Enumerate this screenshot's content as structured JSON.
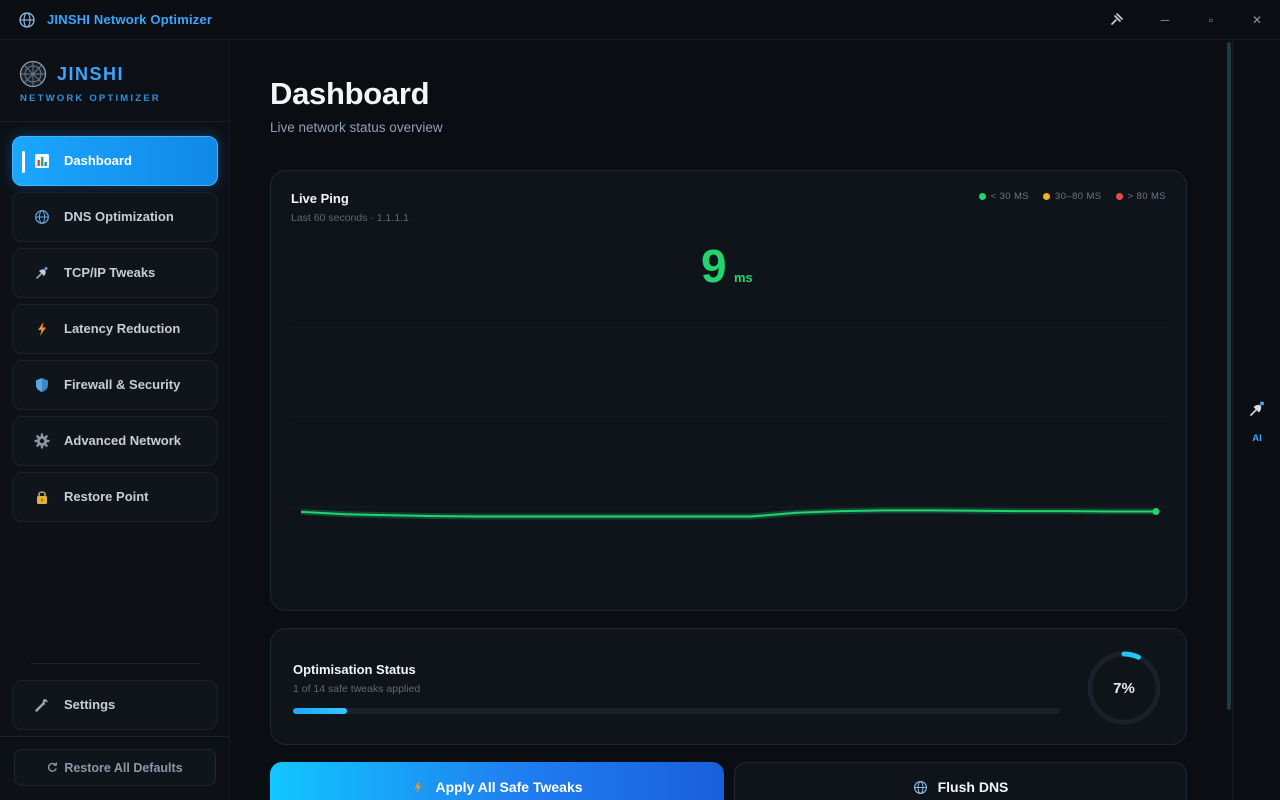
{
  "window": {
    "title": "JINSHI Network Optimizer",
    "controls": {
      "pin": "pin-icon",
      "minimize": "─",
      "maximize": "▫",
      "close": "✕"
    }
  },
  "brand": {
    "name": "JINSHI",
    "subtitle": "NETWORK OPTIMIZER"
  },
  "sidebar": {
    "items": [
      {
        "label": "Dashboard",
        "icon": "bar-chart-icon",
        "active": true
      },
      {
        "label": "DNS Optimization",
        "icon": "globe-icon",
        "active": false
      },
      {
        "label": "TCP/IP Tweaks",
        "icon": "satellite-icon",
        "active": false
      },
      {
        "label": "Latency Reduction",
        "icon": "lightning-icon",
        "active": false
      },
      {
        "label": "Firewall & Security",
        "icon": "shield-icon",
        "active": false
      },
      {
        "label": "Advanced Network",
        "icon": "gear-icon",
        "active": false
      },
      {
        "label": "Restore Point",
        "icon": "lock-icon",
        "active": false
      }
    ],
    "settings_label": "Settings",
    "restore_defaults_label": "Restore All Defaults"
  },
  "main": {
    "title": "Dashboard",
    "subtitle": "Live network status overview",
    "ping_card": {
      "title": "Live Ping",
      "subtitle": "Last 60 seconds · 1.1.1.1",
      "current_value": "9",
      "unit": "ms",
      "legend": [
        {
          "label": "< 30 MS",
          "color": "#21d46e"
        },
        {
          "label": "30–80 MS",
          "color": "#f5b31b"
        },
        {
          "label": "> 80 MS",
          "color": "#f0474d"
        }
      ]
    },
    "optimisation_card": {
      "title": "Optimisation Status",
      "subtitle": "1 of 14 safe tweaks applied",
      "percent_label": "7%",
      "progress": 0.07
    },
    "actions": {
      "apply_label": "Apply All Safe Tweaks",
      "flush_label": "Flush DNS"
    }
  },
  "ai_panel": {
    "label": "AI"
  },
  "colors": {
    "accent": "#1aa7ff",
    "good": "#21d46e",
    "warn": "#f5b31b",
    "bad": "#f0474d"
  },
  "chart_data": {
    "type": "line",
    "title": "Live Ping",
    "xlabel": "",
    "ylabel": "",
    "grid": true,
    "series": [
      {
        "values": [
          10.2,
          9.6,
          9.3,
          9.1,
          9.0,
          9.0,
          9.0,
          9.0,
          9.0,
          9.0,
          9.0,
          10.0,
          10.4,
          10.6,
          10.6,
          10.5,
          10.4,
          10.4,
          10.3,
          10.3
        ]
      }
    ],
    "ylim": [
      0,
      60
    ]
  }
}
